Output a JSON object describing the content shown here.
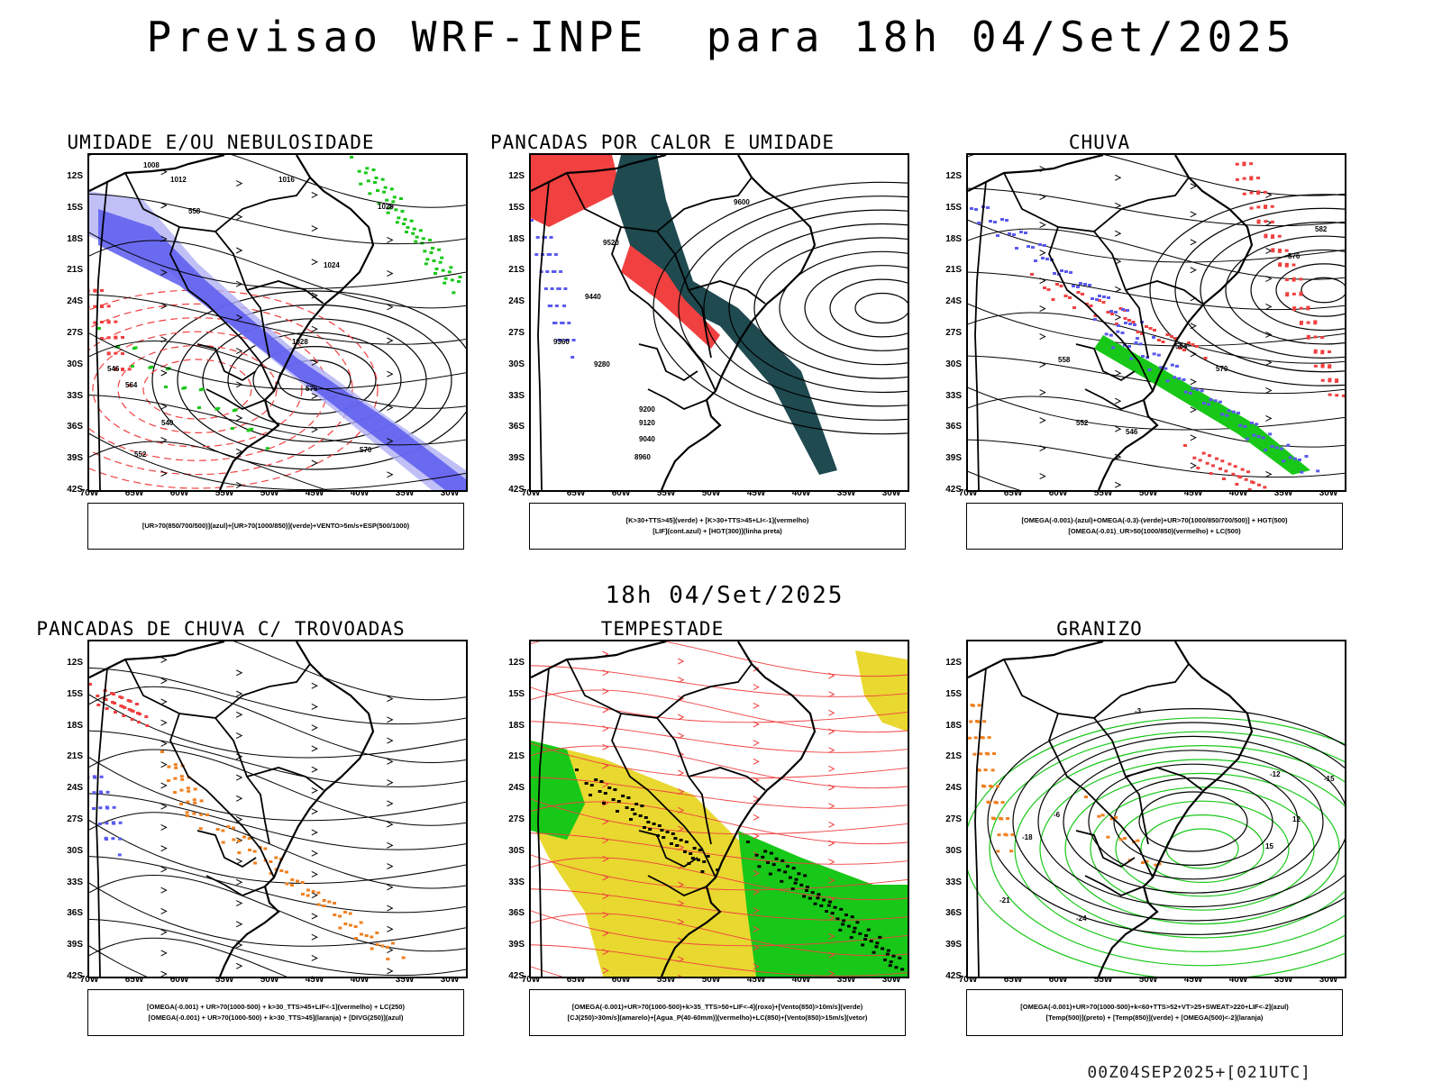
{
  "main_title": "Previsao WRF-INPE  para 18h 04/Set/2025",
  "mid_title": "18h 04/Set/2025",
  "footer": "00Z04SEP2025+[021UTC]",
  "lat_labels": [
    "12S",
    "15S",
    "18S",
    "21S",
    "24S",
    "27S",
    "30S",
    "33S",
    "36S",
    "39S",
    "42S"
  ],
  "lon_labels": [
    "70W",
    "65W",
    "60W",
    "55W",
    "50W",
    "45W",
    "40W",
    "35W",
    "30W"
  ],
  "colors": {
    "blue": "#5a5af0",
    "lightblue": "#b0b0f5",
    "green": "#18c818",
    "red": "#f04040",
    "darkteal": "#1e4a50",
    "orange": "#f08020",
    "yellow": "#e8d830"
  },
  "panels": [
    {
      "id": "umidade",
      "title": "UMIDADE E/OU NEBULOSIDADE",
      "legend": [
        "[UR>70(850/700/500)](azul)+[UR>70(1000/850)](verde)+VENTO>5m/s+ESP(500/1000)"
      ]
    },
    {
      "id": "pancadas-calor",
      "title": "PANCADAS POR CALOR E UMIDADE",
      "legend": [
        "[K>30+TTS>45](verde)  +  [K>30+TTS>45+LI<-1](vermelho)",
        "[LIF](cont.azul)  +  [HGT(300)](linha preta)"
      ]
    },
    {
      "id": "chuva",
      "title": "CHUVA",
      "legend": [
        "[OMEGA(-0.001)-(azul)+OMEGA(-0.3)-(verde)+UR>70(1000/850/700/500)]  +  HGT(500)",
        "[OMEGA(-0.01)_UR>50(1000/850)(vermelho)  +  LC(500)"
      ]
    },
    {
      "id": "trovoadas",
      "title": "PANCADAS DE CHUVA C/ TROVOADAS",
      "legend": [
        "[OMEGA(-0.001)  +  UR>70(1000-500)  +  k>30_TTS>45+LIF<-1](vermelho)  +  LC(250)",
        "[OMEGA(-0.001)  +  UR>70(1000-500)  +  k>30_TTS>45](laranja)  +  [DIVG(250)](azul)"
      ]
    },
    {
      "id": "tempestade",
      "title": "TEMPESTADE",
      "legend": [
        "[OMEGA(-0.001)+UR>70(1000-500)+k>35_TTS>50+LIF<-4](roxo)+[Vento(850)>10m/s](verde)",
        "[CJ(250)>30m/s](amarelo)+[Agua_P(40-60mm)](vermelho)+LC(850)+[Vento(850)>15m/s](vetor)"
      ]
    },
    {
      "id": "granizo",
      "title": "GRANIZO",
      "legend": [
        "[OMEGA(-0.001)+UR>70(1000-500)+k<60+TTS>52+VT>25+SWEAT>220+LIF<-2](azul)",
        "[Temp(500)](preto)  +  [Temp(850)](verde)  +  [OMEGA(500)<-2](laranja)"
      ]
    }
  ],
  "contour_labels": {
    "umidade": [
      "1008",
      "1012",
      "1016",
      "1020",
      "1024",
      "1028",
      "576",
      "570",
      "564",
      "558",
      "552",
      "546",
      "540"
    ],
    "pancadas-calor": [
      "9600",
      "9520",
      "9440",
      "9360",
      "9280",
      "9200",
      "9120",
      "9040",
      "8960"
    ],
    "chuva": [
      "582",
      "576",
      "570",
      "564",
      "558",
      "552",
      "546"
    ],
    "granizo": [
      "-3",
      "-6",
      "-12",
      "-15",
      "-18",
      "-21",
      "-24",
      "12",
      "15"
    ]
  }
}
